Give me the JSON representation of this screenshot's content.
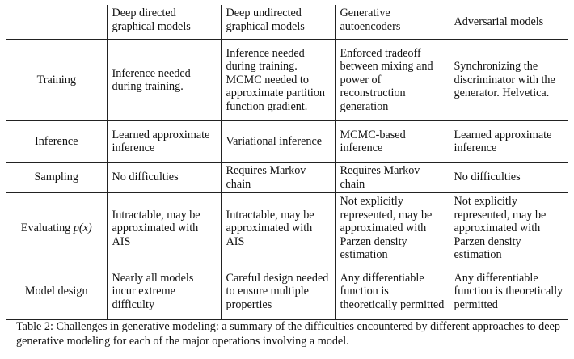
{
  "table": {
    "columns": [
      {
        "label": "Deep directed graphical models"
      },
      {
        "label": "Deep undirected graphical models"
      },
      {
        "label": "Generative autoencoders"
      },
      {
        "label": "Adversarial models"
      }
    ],
    "rows": [
      {
        "label": "Training",
        "cells": [
          "Inference needed during training.",
          "Inference needed during training. MCMC needed to approximate partition function gradient.",
          "Enforced tradeoff between mixing and power of reconstruction generation",
          "Synchronizing the discriminator with the generator. Helvetica."
        ]
      },
      {
        "label": "Inference",
        "cells": [
          "Learned approximate inference",
          "Variational inference",
          "MCMC-based inference",
          "Learned approximate inference"
        ]
      },
      {
        "label": "Sampling",
        "cells": [
          "No difficulties",
          "Requires Markov chain",
          "Requires Markov chain",
          "No difficulties"
        ]
      },
      {
        "label": "Evaluating ",
        "label_math": "p(x)",
        "cells": [
          "Intractable, may be approximated with AIS",
          "Intractable, may be approximated with AIS",
          "Not explicitly represented, may be approximated with Parzen density estimation",
          "Not explicitly represented, may be approximated with Parzen density estimation"
        ]
      },
      {
        "label": "Model design",
        "cells": [
          "Nearly all models incur extreme difficulty",
          "Careful design needed to ensure multiple properties",
          "Any differentiable function is theoretically permitted",
          "Any differentiable function is theoretically permitted"
        ]
      }
    ]
  },
  "caption": {
    "label": "Table 2:",
    "text": " Challenges in generative modeling: a summary of the difficulties encountered by different approaches to deep generative modeling for each of the major operations involving a model."
  }
}
